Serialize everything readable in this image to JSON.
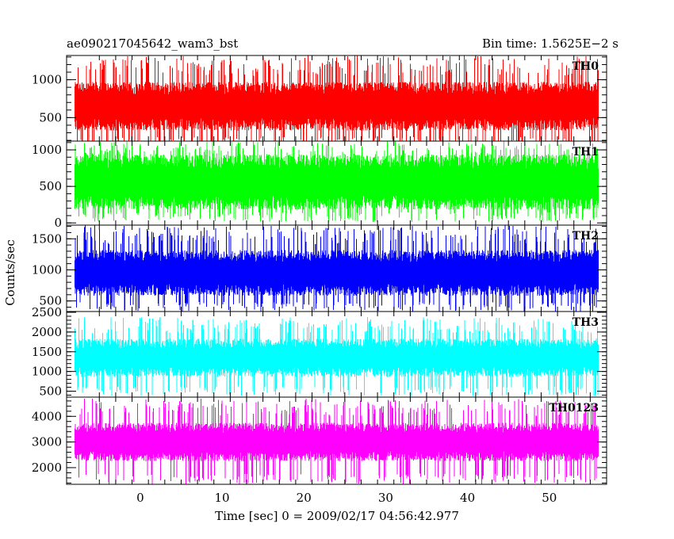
{
  "header": {
    "title": "ae090217045642_wam3_bst",
    "bin_time": "Bin time: 1.5625E−2 s"
  },
  "axes": {
    "xlabel": "Time [sec] 0 = 2009/02/17 04:56:42.977",
    "ylabel": "Counts/sec"
  },
  "chart_data": {
    "type": "line",
    "title": "ae090217045642_wam3_bst",
    "subtitle": "Bin time: 1.5625E−2 s",
    "xlabel": "Time [sec] 0 = 2009/02/17 04:56:42.977",
    "ylabel": "Counts/sec",
    "xlim": [
      -9,
      57
    ],
    "x_range": [
      -8,
      56
    ],
    "bin_time": 0.015625,
    "x_ticks": [
      0,
      10,
      20,
      30,
      40,
      50
    ],
    "grid": false,
    "panels": [
      {
        "name": "TH0",
        "color": "#ff0000",
        "ylim": [
          190,
          1320
        ],
        "y_ticks": [
          500,
          1000
        ],
        "signal_center": 650,
        "signal_half_width": 280,
        "spike_max": 1320,
        "spike_min": 110
      },
      {
        "name": "TH1",
        "color": "#00ff00",
        "ylim": [
          -30,
          1120
        ],
        "y_ticks": [
          0,
          500,
          1000
        ],
        "signal_center": 560,
        "signal_half_width": 330,
        "spike_max": 1120,
        "spike_min": 10
      },
      {
        "name": "TH2",
        "color": "#0000ff",
        "ylim": [
          330,
          1720
        ],
        "y_ticks": [
          500,
          1000,
          1500
        ],
        "signal_center": 950,
        "signal_half_width": 320,
        "spike_max": 1720,
        "spike_min": 330
      },
      {
        "name": "TH3",
        "color": "#00ffff",
        "ylim": [
          350,
          2520
        ],
        "y_ticks": [
          500,
          1000,
          1500,
          2000,
          2500
        ],
        "signal_center": 1350,
        "signal_half_width": 420,
        "spike_max": 2380,
        "spike_min": 380
      },
      {
        "name": "TH0123",
        "color": "#ff00ff",
        "ylim": [
          1350,
          4750
        ],
        "y_ticks": [
          2000,
          3000,
          4000
        ],
        "signal_center": 3000,
        "signal_half_width": 650,
        "spike_max": 4700,
        "spike_min": 1350
      }
    ]
  }
}
